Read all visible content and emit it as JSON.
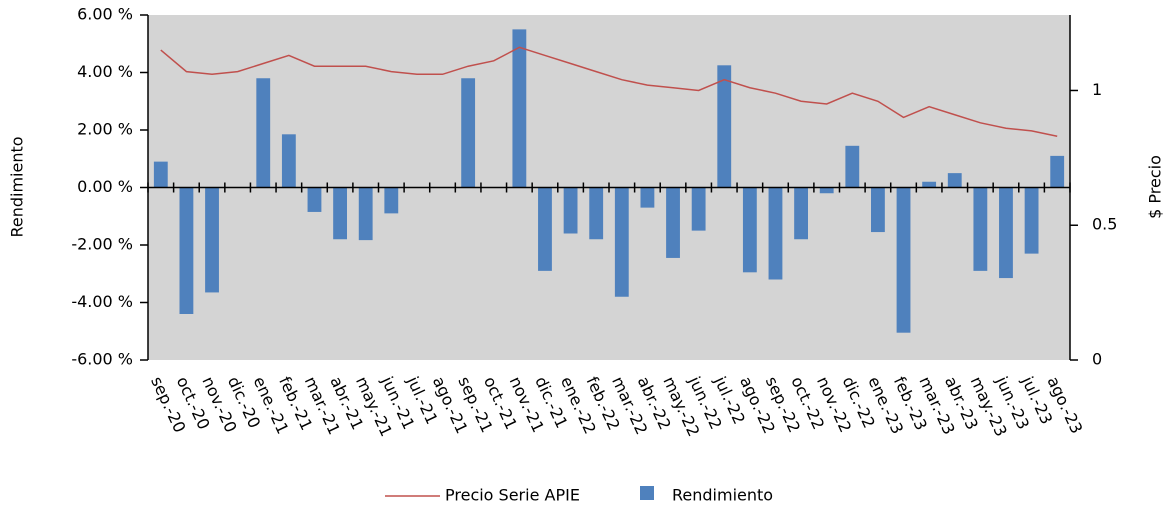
{
  "chart_data": {
    "type": "combo",
    "y_label": "Rendimiento",
    "y2_label": "$ Precio",
    "categories": [
      "sep.-20",
      "oct.-20",
      "nov.-20",
      "dic.-20",
      "ene.-21",
      "feb.-21",
      "mar.-21",
      "abr.-21",
      "may.-21",
      "jun.-21",
      "jul.-21",
      "ago.-21",
      "sep.-21",
      "oct.-21",
      "nov.-21",
      "dic.-21",
      "ene.-22",
      "feb.-22",
      "mar.-22",
      "abr.-22",
      "may.-22",
      "jun.-22",
      "jul.-22",
      "ago.-22",
      "sep.-22",
      "oct.-22",
      "nov.-22",
      "dic.-22",
      "ene.-23",
      "feb.-23",
      "mar.-23",
      "abr.-23",
      "may.-23",
      "jun.-23",
      "jul.-23",
      "ago.-23"
    ],
    "series": [
      {
        "name": "Precio Serie APIE",
        "type": "line",
        "axis": "y2",
        "color": "#c0504d",
        "values": [
          1.15,
          1.07,
          1.06,
          1.07,
          1.1,
          1.13,
          1.09,
          1.09,
          1.09,
          1.07,
          1.06,
          1.06,
          1.09,
          1.11,
          1.16,
          1.13,
          1.1,
          1.07,
          1.04,
          1.02,
          1.01,
          1.0,
          1.04,
          1.01,
          0.99,
          0.96,
          0.95,
          0.99,
          0.96,
          0.9,
          0.94,
          0.91,
          0.88,
          0.86,
          0.85,
          0.83
        ]
      },
      {
        "name": "Rendimiento",
        "type": "bar",
        "color": "#4f81bd",
        "values": [
          0.9,
          -4.4,
          -3.65,
          0,
          3.8,
          1.85,
          -0.85,
          -1.8,
          -1.83,
          -0.9,
          0,
          0,
          3.8,
          0,
          5.5,
          -2.9,
          -1.6,
          -1.8,
          -3.8,
          -0.7,
          -2.45,
          -1.5,
          4.25,
          -2.95,
          -3.2,
          -1.8,
          -0.2,
          1.45,
          -1.55,
          -5.05,
          0.2,
          0.5,
          -2.9,
          -3.15,
          -2.3,
          1.1
        ]
      }
    ],
    "ylim": [
      -6,
      6
    ],
    "yticks": [
      {
        "value": -6,
        "label": "-6.00 %"
      },
      {
        "value": -4,
        "label": "-4.00 %"
      },
      {
        "value": -2,
        "label": "-2.00 %"
      },
      {
        "value": 0,
        "label": "0.00 %"
      },
      {
        "value": 2,
        "label": "2.00 %"
      },
      {
        "value": 4,
        "label": "4.00 %"
      },
      {
        "value": 6,
        "label": "6.00 %"
      }
    ],
    "y2lim": [
      0,
      1.28
    ],
    "y2ticks": [
      0,
      0.5,
      1
    ],
    "legend": "bottom"
  }
}
